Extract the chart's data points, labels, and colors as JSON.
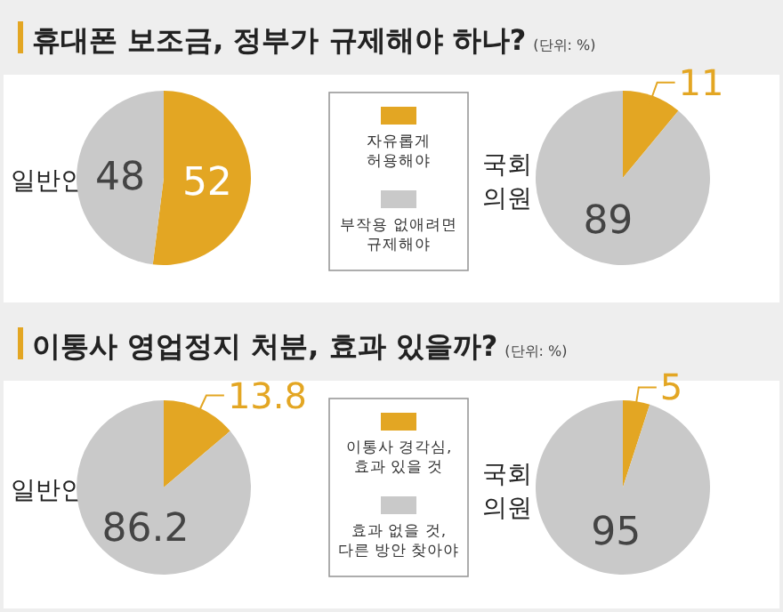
{
  "chart_data": [
    {
      "type": "other",
      "title": "휴대폰 보조금, 정부가 규제해야 하나?",
      "subtitle": "(단위: %)"
    },
    {
      "type": "pie",
      "categories": [
        "자유롭게\n허용해야",
        "부작용 없애려면\n규제해야"
      ],
      "values": [
        52,
        48
      ],
      "colors": [
        "#e3a623",
        "#c9c9c9"
      ],
      "data_labels": true,
      "legend": "right",
      "annotations": [
        "일반인"
      ]
    },
    {
      "type": "pie",
      "categories": [
        null,
        null
      ],
      "values": [
        11,
        89
      ],
      "colors": [
        "#e3a623",
        "#c9c9c9"
      ],
      "data_labels": true,
      "annotations": [
        "국회\n의원"
      ]
    },
    {
      "type": "other",
      "title": "이통사 영업정지 처분, 효과 있을까?",
      "subtitle": "(단위: %)"
    },
    {
      "type": "pie",
      "categories": [
        "이통사 경각심,\n효과 있을 것",
        "효과 없을 것,\n다른 방안 찾아야"
      ],
      "values": [
        13.8,
        86.2
      ],
      "colors": [
        "#e3a623",
        "#c9c9c9"
      ],
      "data_labels": true,
      "legend": "right",
      "annotations": [
        "일반인"
      ]
    },
    {
      "type": "pie",
      "categories": [
        null,
        null
      ],
      "values": [
        5,
        95
      ],
      "colors": [
        "#e3a623",
        "#c9c9c9"
      ],
      "data_labels": true,
      "annotations": [
        "국회\n의원"
      ]
    }
  ]
}
